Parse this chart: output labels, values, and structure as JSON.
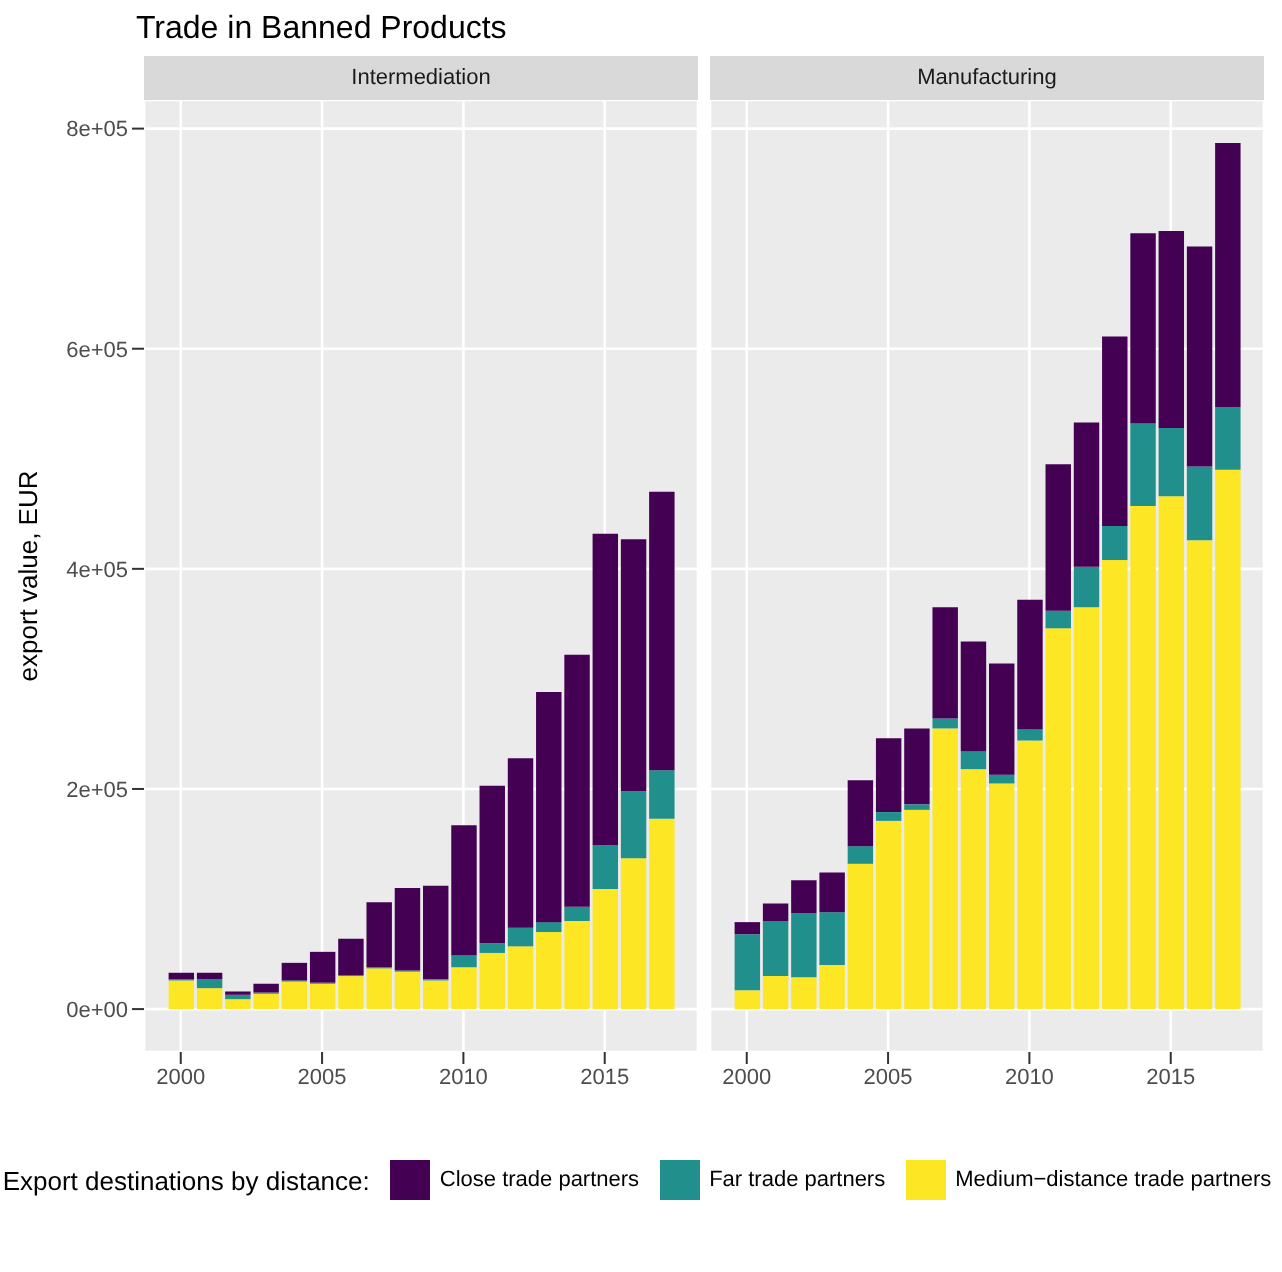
{
  "chart_data": [
    {
      "type": "bar",
      "title": "Trade in Banned Products",
      "subtitle": "Intermediation",
      "ylabel": "export value, EUR",
      "legend_title": "Export destinations by distance:",
      "stacked": true,
      "legend": "bottom",
      "grid": true,
      "x": [
        2000,
        2001,
        2002,
        2003,
        2004,
        2005,
        2006,
        2007,
        2008,
        2009,
        2010,
        2011,
        2012,
        2013,
        2014,
        2015,
        2016,
        2017
      ],
      "xlim": [
        1998.7,
        2018.3
      ],
      "xticks": [
        2000,
        2005,
        2010,
        2015
      ],
      "ylim": [
        -39000,
        826000
      ],
      "yticks": [
        {
          "value": 0,
          "label": "0e+00"
        },
        {
          "value": 200000,
          "label": "2e+05"
        },
        {
          "value": 400000,
          "label": "4e+05"
        },
        {
          "value": 600000,
          "label": "6e+05"
        },
        {
          "value": 800000,
          "label": "8e+05"
        }
      ],
      "series": [
        {
          "name": "Medium−distance trade partners",
          "color": "#fde725",
          "values": [
            26000,
            19000,
            9000,
            14000,
            25000,
            23000,
            30000,
            37000,
            34000,
            26000,
            38000,
            51000,
            57000,
            70000,
            80000,
            109000,
            137000,
            173000
          ]
        },
        {
          "name": "Far trade partners",
          "color": "#21908c",
          "values": [
            1000,
            8000,
            4000,
            1000,
            1000,
            1000,
            1000,
            1000,
            1000,
            1000,
            11000,
            9000,
            17000,
            9000,
            13000,
            40000,
            61000,
            44000
          ]
        },
        {
          "name": "Close trade partners",
          "color": "#440154",
          "values": [
            6000,
            6000,
            3000,
            8000,
            16000,
            28000,
            33000,
            59000,
            75000,
            85000,
            118000,
            143000,
            154000,
            209000,
            229000,
            283000,
            229000,
            253000
          ]
        }
      ]
    },
    {
      "type": "bar",
      "subtitle": "Manufacturing",
      "stacked": true,
      "grid": true,
      "tick_labels": "x",
      "x": [
        2000,
        2001,
        2002,
        2003,
        2004,
        2005,
        2006,
        2007,
        2008,
        2009,
        2010,
        2011,
        2012,
        2013,
        2014,
        2015,
        2016,
        2017
      ],
      "xlim": [
        1998.7,
        2018.3
      ],
      "xticks": [
        2000,
        2005,
        2010,
        2015
      ],
      "ylim": [
        -39000,
        826000
      ],
      "yticks": [
        0,
        200000,
        400000,
        600000,
        800000
      ],
      "series": [
        {
          "name": "Medium−distance trade partners",
          "color": "#fde725",
          "values": [
            17000,
            30000,
            29000,
            40000,
            132000,
            171000,
            181000,
            255000,
            218000,
            205000,
            244000,
            346000,
            365000,
            408000,
            457000,
            466000,
            426000,
            490000
          ]
        },
        {
          "name": "Far trade partners",
          "color": "#21908c",
          "values": [
            51000,
            50000,
            58000,
            48000,
            16000,
            8000,
            5000,
            9000,
            16000,
            8000,
            10000,
            16000,
            37000,
            31000,
            75000,
            62000,
            67000,
            57000
          ]
        },
        {
          "name": "Close trade partners",
          "color": "#440154",
          "values": [
            11000,
            16000,
            30000,
            36000,
            60000,
            67000,
            69000,
            101000,
            100000,
            101000,
            118000,
            133000,
            131000,
            172000,
            173000,
            179000,
            200000,
            240000
          ]
        }
      ]
    }
  ]
}
